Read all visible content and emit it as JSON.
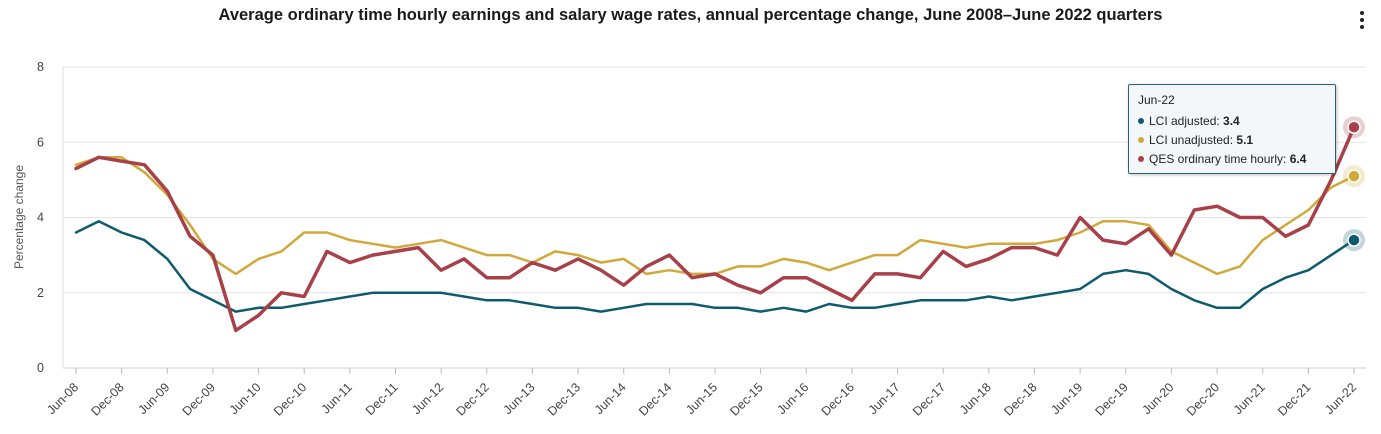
{
  "chart_data": {
    "type": "line",
    "title": "Average ordinary time hourly earnings and salary wage rates, annual percentage change, June 2008–June 2022 quarters",
    "xlabel": "",
    "ylabel": "Percentage change",
    "ylim": [
      0,
      8
    ],
    "yticks": [
      0,
      2,
      4,
      6,
      8
    ],
    "grid": true,
    "categories": [
      "Jun-08",
      "Sep-08",
      "Dec-08",
      "Mar-09",
      "Jun-09",
      "Sep-09",
      "Dec-09",
      "Mar-10",
      "Jun-10",
      "Sep-10",
      "Dec-10",
      "Mar-11",
      "Jun-11",
      "Sep-11",
      "Dec-11",
      "Mar-12",
      "Jun-12",
      "Sep-12",
      "Dec-12",
      "Mar-13",
      "Jun-13",
      "Sep-13",
      "Dec-13",
      "Mar-14",
      "Jun-14",
      "Sep-14",
      "Dec-14",
      "Mar-15",
      "Jun-15",
      "Sep-15",
      "Dec-15",
      "Mar-16",
      "Jun-16",
      "Sep-16",
      "Dec-16",
      "Mar-17",
      "Jun-17",
      "Sep-17",
      "Dec-17",
      "Mar-18",
      "Jun-18",
      "Sep-18",
      "Dec-18",
      "Mar-19",
      "Jun-19",
      "Sep-19",
      "Dec-19",
      "Mar-20",
      "Jun-20",
      "Sep-20",
      "Dec-20",
      "Mar-21",
      "Jun-21",
      "Sep-21",
      "Dec-21",
      "Mar-22",
      "Jun-22"
    ],
    "xtick_labels": [
      "Jun-08",
      "Dec-08",
      "Jun-09",
      "Dec-09",
      "Jun-10",
      "Dec-10",
      "Jun-11",
      "Dec-11",
      "Jun-12",
      "Dec-12",
      "Jun-13",
      "Dec-13",
      "Jun-14",
      "Dec-14",
      "Jun-15",
      "Dec-15",
      "Jun-16",
      "Dec-16",
      "Jun-17",
      "Dec-17",
      "Jun-18",
      "Dec-18",
      "Jun-19",
      "Dec-19",
      "Jun-20",
      "Dec-20",
      "Jun-21",
      "Dec-21",
      "Jun-22"
    ],
    "series": [
      {
        "name": "LCI adjusted",
        "color": "#0f5b6e",
        "values": [
          3.6,
          3.9,
          3.6,
          3.4,
          2.9,
          2.1,
          1.8,
          1.5,
          1.6,
          1.6,
          1.7,
          1.8,
          1.9,
          2.0,
          2.0,
          2.0,
          2.0,
          1.9,
          1.8,
          1.8,
          1.7,
          1.6,
          1.6,
          1.5,
          1.6,
          1.7,
          1.7,
          1.7,
          1.6,
          1.6,
          1.5,
          1.6,
          1.5,
          1.7,
          1.6,
          1.6,
          1.7,
          1.8,
          1.8,
          1.8,
          1.9,
          1.8,
          1.9,
          2.0,
          2.1,
          2.5,
          2.6,
          2.5,
          2.1,
          1.8,
          1.6,
          1.6,
          2.1,
          2.4,
          2.6,
          3.0,
          3.4
        ]
      },
      {
        "name": "LCI unadjusted",
        "color": "#d0a93a",
        "values": [
          5.4,
          5.6,
          5.6,
          5.2,
          4.6,
          3.8,
          2.9,
          2.5,
          2.9,
          3.1,
          3.6,
          3.6,
          3.4,
          3.3,
          3.2,
          3.3,
          3.4,
          3.2,
          3.0,
          3.0,
          2.8,
          3.1,
          3.0,
          2.8,
          2.9,
          2.5,
          2.6,
          2.5,
          2.5,
          2.7,
          2.7,
          2.9,
          2.8,
          2.6,
          2.8,
          3.0,
          3.0,
          3.4,
          3.3,
          3.2,
          3.3,
          3.3,
          3.3,
          3.4,
          3.6,
          3.9,
          3.9,
          3.8,
          3.1,
          2.8,
          2.5,
          2.7,
          3.4,
          3.8,
          4.2,
          4.8,
          5.1
        ]
      },
      {
        "name": "QES ordinary time hourly",
        "color": "#a8404a",
        "values": [
          5.3,
          5.6,
          5.5,
          5.4,
          4.7,
          3.5,
          3.0,
          1.0,
          1.4,
          2.0,
          1.9,
          3.1,
          2.8,
          3.0,
          3.1,
          3.2,
          2.6,
          2.9,
          2.4,
          2.4,
          2.8,
          2.6,
          2.9,
          2.6,
          2.2,
          2.7,
          3.0,
          2.4,
          2.5,
          2.2,
          2.0,
          2.4,
          2.4,
          2.1,
          1.8,
          2.5,
          2.5,
          2.4,
          3.1,
          2.7,
          2.9,
          3.2,
          3.2,
          3.0,
          4.0,
          3.4,
          3.3,
          3.7,
          3.0,
          4.2,
          4.3,
          4.0,
          4.0,
          3.5,
          3.8,
          5.0,
          6.4
        ]
      }
    ],
    "tooltip": {
      "header": "Jun-22",
      "rows": [
        {
          "label": "LCI adjusted: ",
          "value": "3.4"
        },
        {
          "label": "LCI unadjusted: ",
          "value": "5.1"
        },
        {
          "label": "QES ordinary time hourly: ",
          "value": "6.4"
        }
      ]
    }
  },
  "menu": {
    "icon": "more-vertical-icon"
  }
}
